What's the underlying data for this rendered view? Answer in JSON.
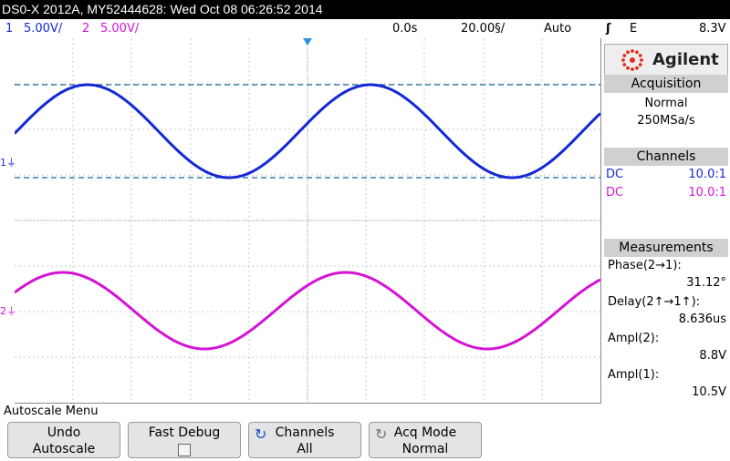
{
  "title": "DS0-X 2012A, MY52444628: Wed Oct 08 06:26:52 2014",
  "status": {
    "ch1_num": "1",
    "ch1_scale": "5.00V/",
    "ch2_num": "2",
    "ch2_scale": "5.00V/",
    "time_offset": "0.0s",
    "time_scale": "20.00§/",
    "trigger_mode": "Auto",
    "trigger_icon": "rising-edge-icon",
    "trigger_source": "E",
    "trigger_level": "8.3V"
  },
  "colors": {
    "ch1": "#1428d6",
    "ch2": "#d414d4",
    "cursor": "#3a7fb0",
    "grid": "#c8c8c8"
  },
  "markers": {
    "ch1": "1",
    "ch2": "2"
  },
  "brand": "Agilent",
  "acquisition": {
    "header": "Acquisition",
    "mode": "Normal",
    "rate": "250MSa/s"
  },
  "channels": {
    "header": "Channels",
    "ch1_coupling": "DC",
    "ch1_probe": "10.0:1",
    "ch2_coupling": "DC",
    "ch2_probe": "10.0:1"
  },
  "measurements": {
    "header": "Measurements",
    "phase_label": "Phase(2→1):",
    "phase_value": "31.12°",
    "delay_label": "Delay(2↑→1↑):",
    "delay_value": "8.636us",
    "ampl2_label": "Ampl(2):",
    "ampl2_value": "8.8V",
    "ampl1_label": "Ampl(1):",
    "ampl1_value": "10.5V"
  },
  "menu_title": "Autoscale Menu",
  "softkeys": {
    "undo_l1": "Undo",
    "undo_l2": "Autoscale",
    "fastdebug_l1": "Fast Debug",
    "channels_l1": "Channels",
    "channels_l2": "All",
    "acqmode_l1": "Acq Mode",
    "acqmode_l2": "Normal"
  }
}
